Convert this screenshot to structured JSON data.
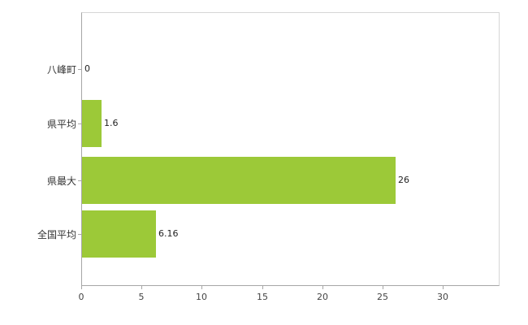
{
  "chart_data": {
    "type": "bar",
    "orientation": "horizontal",
    "title": "",
    "xlabel": "",
    "ylabel": "",
    "categories": [
      "八峰町",
      "県平均",
      "県最大",
      "全国平均"
    ],
    "values": [
      0,
      1.6,
      26,
      6.16
    ],
    "value_labels": [
      "0",
      "1.6",
      "26",
      "6.16"
    ],
    "x_ticks": [
      0,
      5,
      10,
      15,
      20,
      25,
      30
    ],
    "x_tick_labels": [
      "0",
      "5",
      "10",
      "15",
      "20",
      "25",
      "30"
    ],
    "xlim": [
      0,
      30
    ],
    "grid": false,
    "legend": false,
    "bar_color": "#9cc938",
    "axis_color": "#a6a6a6",
    "border_color": "#d6d6d6",
    "text_color": "#333333"
  }
}
